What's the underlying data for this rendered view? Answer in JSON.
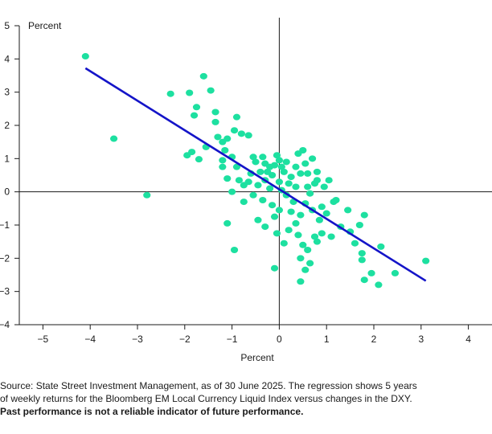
{
  "chart_data": {
    "type": "scatter",
    "title": "",
    "xlabel": "Percent",
    "ylabel": "Percent",
    "xlim": [
      -5.5,
      4.5
    ],
    "ylim": [
      -4,
      5
    ],
    "xticks": [
      -5,
      -4,
      -3,
      -2,
      -1,
      0,
      1,
      2,
      3,
      4
    ],
    "yticks": [
      -4,
      -3,
      -2,
      -1,
      0,
      1,
      2,
      3,
      4,
      5
    ],
    "grid": false,
    "colors": {
      "points": "#1de0a0",
      "regression": "#1414c8",
      "axes": "#1a1a1a"
    },
    "regression": {
      "x": [
        -4.1,
        3.1
      ],
      "y": [
        3.72,
        -2.68
      ]
    },
    "points": [
      [
        -4.1,
        4.08
      ],
      [
        -3.5,
        1.6
      ],
      [
        -2.8,
        -0.1
      ],
      [
        -2.3,
        2.95
      ],
      [
        -1.9,
        2.98
      ],
      [
        -1.6,
        3.48
      ],
      [
        -1.45,
        3.05
      ],
      [
        -1.75,
        2.55
      ],
      [
        -1.35,
        2.4
      ],
      [
        -1.35,
        2.1
      ],
      [
        -1.8,
        2.3
      ],
      [
        -1.85,
        1.2
      ],
      [
        -1.7,
        0.98
      ],
      [
        -1.95,
        1.1
      ],
      [
        -1.55,
        1.35
      ],
      [
        -1.3,
        1.65
      ],
      [
        -1.2,
        1.5
      ],
      [
        -1.1,
        1.6
      ],
      [
        -0.9,
        2.25
      ],
      [
        -0.95,
        1.85
      ],
      [
        -0.8,
        1.75
      ],
      [
        -0.65,
        1.7
      ],
      [
        -1.15,
        1.25
      ],
      [
        -1.2,
        0.95
      ],
      [
        -1.0,
        1.05
      ],
      [
        -1.2,
        0.75
      ],
      [
        -0.9,
        0.75
      ],
      [
        -1.1,
        0.4
      ],
      [
        -0.85,
        0.35
      ],
      [
        -0.75,
        0.2
      ],
      [
        -1.0,
        0.0
      ],
      [
        -1.1,
        -0.95
      ],
      [
        -0.95,
        -1.75
      ],
      [
        -0.6,
        0.55
      ],
      [
        -0.5,
        0.9
      ],
      [
        -0.55,
        1.05
      ],
      [
        -0.35,
        1.05
      ],
      [
        -0.3,
        0.85
      ],
      [
        -0.2,
        0.75
      ],
      [
        -0.65,
        0.3
      ],
      [
        -0.45,
        0.2
      ],
      [
        -0.3,
        0.35
      ],
      [
        -0.2,
        0.1
      ],
      [
        -0.55,
        -0.1
      ],
      [
        -0.35,
        -0.25
      ],
      [
        -0.75,
        -0.3
      ],
      [
        -0.45,
        -0.85
      ],
      [
        -0.3,
        -1.05
      ],
      [
        -0.15,
        -0.4
      ],
      [
        -0.15,
        0.5
      ],
      [
        -0.1,
        0.8
      ],
      [
        -0.05,
        1.1
      ],
      [
        0.0,
        0.95
      ],
      [
        0.05,
        0.75
      ],
      [
        0.1,
        0.6
      ],
      [
        0.0,
        0.3
      ],
      [
        0.05,
        0.05
      ],
      [
        0.15,
        -0.1
      ],
      [
        0.0,
        -0.55
      ],
      [
        -0.1,
        -0.75
      ],
      [
        -0.05,
        -1.25
      ],
      [
        -0.1,
        -2.3
      ],
      [
        0.1,
        -1.55
      ],
      [
        0.2,
        -1.15
      ],
      [
        0.25,
        -0.6
      ],
      [
        0.3,
        -0.3
      ],
      [
        0.35,
        0.15
      ],
      [
        0.25,
        0.45
      ],
      [
        0.35,
        0.75
      ],
      [
        0.4,
        1.15
      ],
      [
        0.5,
        1.25
      ],
      [
        0.55,
        0.85
      ],
      [
        0.6,
        0.55
      ],
      [
        0.7,
        1.0
      ],
      [
        0.8,
        0.6
      ],
      [
        0.75,
        0.25
      ],
      [
        0.65,
        -0.05
      ],
      [
        0.55,
        -0.35
      ],
      [
        0.45,
        -0.7
      ],
      [
        0.4,
        -1.3
      ],
      [
        0.5,
        -1.6
      ],
      [
        0.45,
        -2.0
      ],
      [
        0.6,
        -1.75
      ],
      [
        0.55,
        -2.35
      ],
      [
        0.65,
        -2.15
      ],
      [
        0.45,
        -2.7
      ],
      [
        0.8,
        -1.5
      ],
      [
        0.9,
        -1.25
      ],
      [
        0.85,
        -0.85
      ],
      [
        0.9,
        -0.45
      ],
      [
        1.0,
        -0.65
      ],
      [
        0.95,
        0.15
      ],
      [
        1.05,
        0.35
      ],
      [
        0.8,
        0.35
      ],
      [
        1.2,
        -0.25
      ],
      [
        1.1,
        -1.35
      ],
      [
        1.3,
        -1.05
      ],
      [
        1.45,
        -0.55
      ],
      [
        1.5,
        -1.2
      ],
      [
        1.6,
        -1.55
      ],
      [
        1.75,
        -1.85
      ],
      [
        1.75,
        -2.05
      ],
      [
        1.8,
        -2.65
      ],
      [
        1.95,
        -2.45
      ],
      [
        2.1,
        -2.8
      ],
      [
        2.45,
        -2.45
      ],
      [
        2.15,
        -1.65
      ],
      [
        1.8,
        -0.7
      ],
      [
        3.1,
        -2.08
      ],
      [
        1.15,
        -0.3
      ],
      [
        -0.25,
        0.6
      ],
      [
        0.2,
        0.25
      ],
      [
        0.45,
        0.55
      ],
      [
        0.6,
        0.15
      ],
      [
        0.7,
        -0.55
      ],
      [
        -0.4,
        0.6
      ],
      [
        0.15,
        0.9
      ],
      [
        0.35,
        -0.95
      ],
      [
        0.75,
        -1.35
      ],
      [
        1.7,
        -1.0
      ]
    ]
  },
  "footnote": {
    "line1": "Source: State Street Investment Management, as of 30 June 2025. The regression shows 5 years",
    "line2": "of weekly returns for the Bloomberg EM Local Currency Liquid Index versus changes in the DXY.",
    "line3": "Past performance is not a reliable indicator of future performance."
  }
}
